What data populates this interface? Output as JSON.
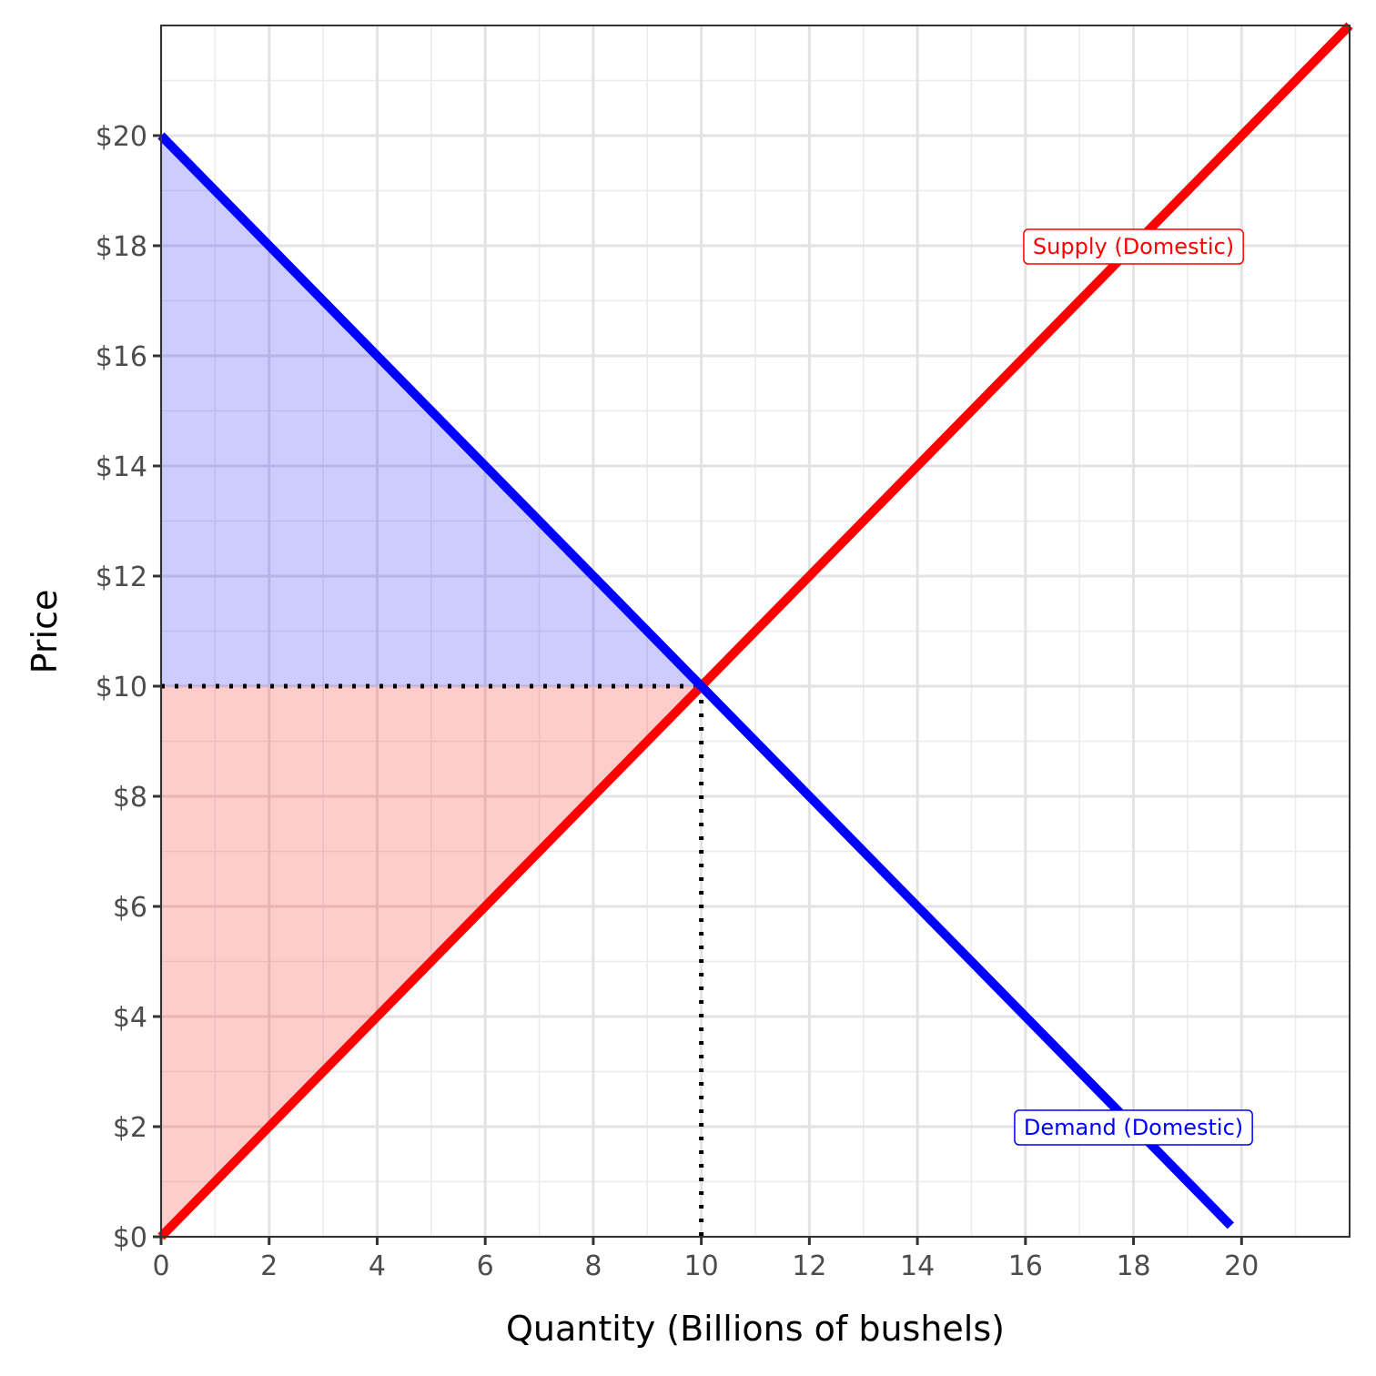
{
  "chart_data": {
    "type": "line",
    "title": "",
    "xlabel": "Quantity (Billions of bushels)",
    "ylabel": "Price",
    "xlim": [
      0,
      22
    ],
    "ylim": [
      0,
      22
    ],
    "x_ticks": [
      0,
      2,
      4,
      6,
      8,
      10,
      12,
      14,
      16,
      18,
      20
    ],
    "x_tick_labels": [
      "0",
      "2",
      "4",
      "6",
      "8",
      "10",
      "12",
      "14",
      "16",
      "18",
      "20"
    ],
    "y_ticks": [
      0,
      2,
      4,
      6,
      8,
      10,
      12,
      14,
      16,
      18,
      20
    ],
    "y_tick_labels": [
      "$0",
      "$2",
      "$4",
      "$6",
      "$8",
      "$10",
      "$12",
      "$14",
      "$16",
      "$18",
      "$20"
    ],
    "grid": true,
    "series": [
      {
        "name": "Supply (Domestic)",
        "color": "#ff0000",
        "x": [
          0,
          22
        ],
        "y": [
          0,
          22
        ]
      },
      {
        "name": "Demand (Domestic)",
        "color": "#0000ff",
        "x": [
          0,
          19.8
        ],
        "y": [
          20,
          0.2
        ]
      }
    ],
    "equilibrium": {
      "x": 10,
      "y": 10
    },
    "areas": [
      {
        "id": "consumer-surplus",
        "color": "#0000ff",
        "opacity": 0.2,
        "points": [
          [
            0,
            20
          ],
          [
            10,
            10
          ],
          [
            0,
            10
          ]
        ]
      },
      {
        "id": "producer-surplus",
        "color": "#ff0000",
        "opacity": 0.2,
        "points": [
          [
            0,
            10
          ],
          [
            10,
            10
          ],
          [
            0,
            0
          ]
        ]
      }
    ],
    "annotations": [
      {
        "text": "Supply (Domestic)",
        "x": 18,
        "y": 18,
        "color": "#ff0000"
      },
      {
        "text": "Demand (Domestic)",
        "x": 18,
        "y": 2,
        "color": "#0000ff"
      }
    ]
  }
}
